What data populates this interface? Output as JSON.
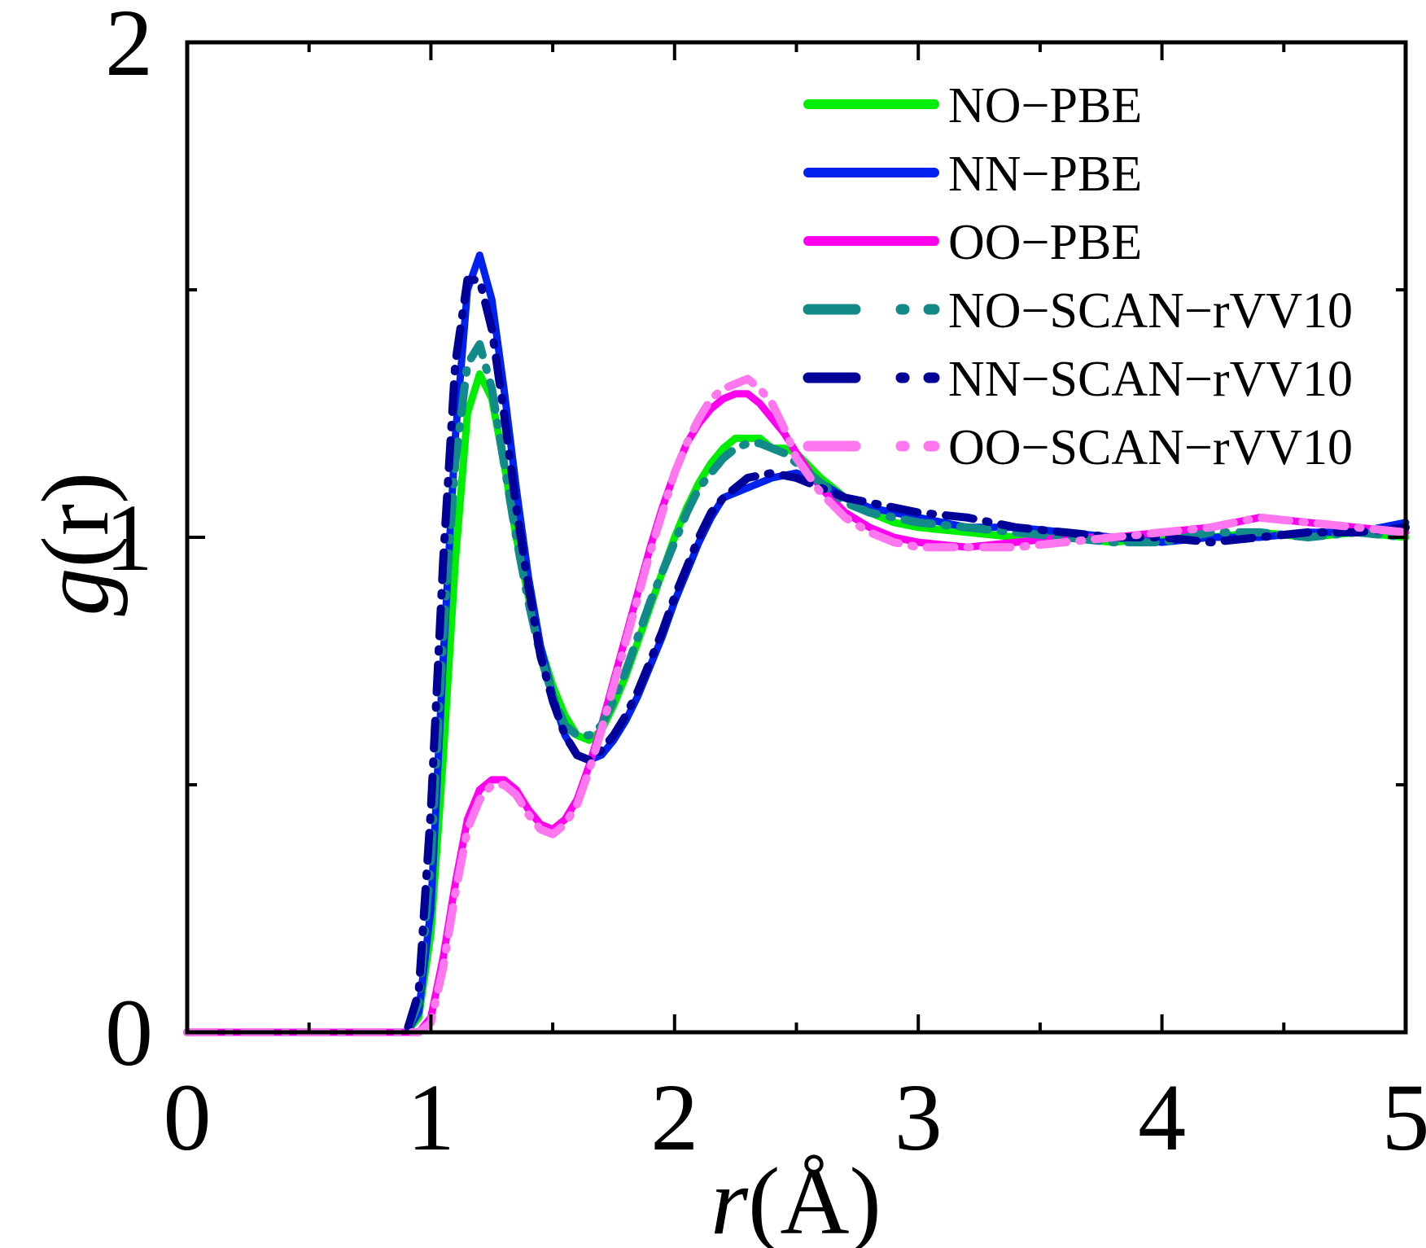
{
  "chart_data": {
    "type": "line",
    "title": "",
    "xlabel_italic": "r",
    "xlabel_rest": "(Å)",
    "ylabel_italic": "g",
    "ylabel_rest": "(r)",
    "xlim": [
      0,
      5
    ],
    "ylim": [
      0,
      2
    ],
    "xticks": [
      0,
      1,
      2,
      3,
      4,
      5
    ],
    "xtick_labels": [
      "0",
      "1",
      "2",
      "3",
      "4",
      "5"
    ],
    "yticks": [
      0,
      1,
      2
    ],
    "ytick_labels": [
      "0",
      "1",
      "2"
    ],
    "grid": false,
    "legend_position": "top-right",
    "series": [
      {
        "name": "NO−PBE",
        "color": "#00ee00",
        "style": "solid",
        "x": [
          0,
          0.9,
          0.95,
          1.0,
          1.05,
          1.1,
          1.15,
          1.2,
          1.25,
          1.3,
          1.35,
          1.4,
          1.45,
          1.5,
          1.55,
          1.6,
          1.65,
          1.7,
          1.75,
          1.8,
          1.85,
          1.9,
          1.95,
          2.0,
          2.05,
          2.1,
          2.15,
          2.2,
          2.25,
          2.3,
          2.35,
          2.4,
          2.45,
          2.5,
          2.6,
          2.7,
          2.8,
          2.9,
          3.0,
          3.2,
          3.4,
          3.6,
          3.8,
          4.0,
          4.2,
          4.4,
          4.6,
          4.8,
          5.0
        ],
        "y": [
          0,
          0,
          0.03,
          0.2,
          0.55,
          0.95,
          1.25,
          1.33,
          1.28,
          1.15,
          1.0,
          0.88,
          0.78,
          0.7,
          0.64,
          0.6,
          0.59,
          0.61,
          0.66,
          0.72,
          0.79,
          0.86,
          0.93,
          1.0,
          1.06,
          1.11,
          1.15,
          1.18,
          1.2,
          1.2,
          1.2,
          1.18,
          1.18,
          1.17,
          1.12,
          1.08,
          1.05,
          1.03,
          1.02,
          1.01,
          1.0,
          1.0,
          0.99,
          1.0,
          1.0,
          1.01,
          1.0,
          1.01,
          1.0
        ]
      },
      {
        "name": "NN−PBE",
        "color": "#0022ee",
        "style": "solid",
        "x": [
          0,
          0.9,
          0.95,
          1.0,
          1.05,
          1.1,
          1.15,
          1.2,
          1.25,
          1.3,
          1.35,
          1.4,
          1.45,
          1.5,
          1.55,
          1.6,
          1.65,
          1.7,
          1.75,
          1.8,
          1.85,
          1.9,
          1.95,
          2.0,
          2.05,
          2.1,
          2.15,
          2.2,
          2.3,
          2.4,
          2.5,
          2.6,
          2.7,
          2.8,
          2.9,
          3.0,
          3.2,
          3.4,
          3.6,
          3.8,
          4.0,
          4.2,
          4.4,
          4.6,
          4.8,
          5.0
        ],
        "y": [
          0,
          0,
          0.04,
          0.25,
          0.75,
          1.2,
          1.5,
          1.57,
          1.48,
          1.3,
          1.1,
          0.92,
          0.78,
          0.68,
          0.6,
          0.56,
          0.55,
          0.56,
          0.59,
          0.63,
          0.68,
          0.74,
          0.8,
          0.87,
          0.93,
          0.99,
          1.04,
          1.08,
          1.1,
          1.12,
          1.13,
          1.11,
          1.08,
          1.06,
          1.05,
          1.04,
          1.02,
          1.02,
          1.01,
          1.0,
          0.99,
          1.0,
          1.0,
          1.01,
          1.01,
          1.03
        ]
      },
      {
        "name": "OO−PBE",
        "color": "#ff00ee",
        "style": "solid",
        "x": [
          0,
          0.95,
          1.0,
          1.05,
          1.1,
          1.15,
          1.2,
          1.25,
          1.3,
          1.35,
          1.4,
          1.45,
          1.5,
          1.55,
          1.6,
          1.65,
          1.7,
          1.75,
          1.8,
          1.85,
          1.9,
          1.95,
          2.0,
          2.05,
          2.1,
          2.15,
          2.2,
          2.25,
          2.3,
          2.35,
          2.4,
          2.45,
          2.5,
          2.6,
          2.7,
          2.8,
          2.9,
          3.0,
          3.2,
          3.4,
          3.6,
          3.8,
          4.0,
          4.2,
          4.4,
          4.6,
          4.8,
          5.0
        ],
        "y": [
          0,
          0,
          0.03,
          0.15,
          0.3,
          0.43,
          0.49,
          0.51,
          0.51,
          0.49,
          0.45,
          0.42,
          0.41,
          0.43,
          0.47,
          0.54,
          0.62,
          0.71,
          0.8,
          0.89,
          0.98,
          1.06,
          1.13,
          1.19,
          1.23,
          1.26,
          1.28,
          1.29,
          1.29,
          1.27,
          1.24,
          1.21,
          1.17,
          1.1,
          1.05,
          1.02,
          1.0,
          0.99,
          0.98,
          0.99,
          1.0,
          1.0,
          1.01,
          1.02,
          1.04,
          1.03,
          1.02,
          1.01
        ]
      },
      {
        "name": "NO−SCAN−rVV10",
        "color": "#138a8a",
        "style": "dashdot",
        "x": [
          0,
          0.9,
          0.95,
          1.0,
          1.05,
          1.1,
          1.15,
          1.2,
          1.25,
          1.3,
          1.35,
          1.4,
          1.45,
          1.5,
          1.55,
          1.6,
          1.65,
          1.7,
          1.75,
          1.8,
          1.85,
          1.9,
          1.95,
          2.0,
          2.05,
          2.1,
          2.15,
          2.2,
          2.25,
          2.3,
          2.35,
          2.4,
          2.45,
          2.5,
          2.6,
          2.7,
          2.8,
          2.9,
          3.0,
          3.2,
          3.4,
          3.6,
          3.8,
          4.0,
          4.2,
          4.4,
          4.6,
          4.8,
          5.0
        ],
        "y": [
          0,
          0,
          0.06,
          0.35,
          0.8,
          1.15,
          1.35,
          1.39,
          1.3,
          1.15,
          1.0,
          0.87,
          0.76,
          0.68,
          0.62,
          0.6,
          0.6,
          0.62,
          0.67,
          0.73,
          0.8,
          0.87,
          0.93,
          0.99,
          1.05,
          1.1,
          1.13,
          1.16,
          1.18,
          1.19,
          1.19,
          1.18,
          1.17,
          1.15,
          1.11,
          1.07,
          1.05,
          1.04,
          1.03,
          1.02,
          1.01,
          1.0,
          0.99,
          0.99,
          1.01,
          1.01,
          1.0,
          1.01,
          1.0
        ]
      },
      {
        "name": "NN−SCAN−rVV10",
        "color": "#000099",
        "style": "dashdot",
        "x": [
          0,
          0.9,
          0.95,
          1.0,
          1.05,
          1.1,
          1.15,
          1.2,
          1.25,
          1.3,
          1.35,
          1.4,
          1.45,
          1.5,
          1.55,
          1.6,
          1.65,
          1.7,
          1.75,
          1.8,
          1.85,
          1.9,
          1.95,
          2.0,
          2.05,
          2.1,
          2.15,
          2.2,
          2.3,
          2.4,
          2.5,
          2.6,
          2.7,
          2.8,
          2.9,
          3.0,
          3.2,
          3.4,
          3.6,
          3.8,
          4.0,
          4.2,
          4.4,
          4.6,
          4.8,
          5.0
        ],
        "y": [
          0,
          0,
          0.08,
          0.45,
          0.95,
          1.35,
          1.52,
          1.52,
          1.42,
          1.25,
          1.06,
          0.9,
          0.76,
          0.67,
          0.6,
          0.56,
          0.55,
          0.57,
          0.6,
          0.64,
          0.69,
          0.75,
          0.81,
          0.88,
          0.94,
          1.0,
          1.05,
          1.08,
          1.12,
          1.13,
          1.12,
          1.1,
          1.08,
          1.07,
          1.06,
          1.05,
          1.04,
          1.02,
          1.01,
          1.0,
          1.0,
          0.99,
          1.0,
          1.01,
          1.01,
          1.02
        ]
      },
      {
        "name": "OO−SCAN−rVV10",
        "color": "#ff77ee",
        "style": "dashdot",
        "x": [
          0,
          0.95,
          1.0,
          1.05,
          1.1,
          1.15,
          1.2,
          1.25,
          1.3,
          1.35,
          1.4,
          1.45,
          1.5,
          1.55,
          1.6,
          1.65,
          1.7,
          1.75,
          1.8,
          1.85,
          1.9,
          1.95,
          2.0,
          2.05,
          2.1,
          2.15,
          2.2,
          2.25,
          2.3,
          2.35,
          2.4,
          2.45,
          2.5,
          2.6,
          2.7,
          2.8,
          2.9,
          3.0,
          3.2,
          3.4,
          3.6,
          3.8,
          4.0,
          4.2,
          4.4,
          4.6,
          4.8,
          5.0
        ],
        "y": [
          0,
          0,
          0.02,
          0.13,
          0.28,
          0.41,
          0.47,
          0.5,
          0.5,
          0.48,
          0.44,
          0.41,
          0.4,
          0.42,
          0.46,
          0.53,
          0.61,
          0.7,
          0.79,
          0.88,
          0.97,
          1.05,
          1.13,
          1.19,
          1.24,
          1.28,
          1.3,
          1.31,
          1.32,
          1.3,
          1.27,
          1.22,
          1.16,
          1.09,
          1.04,
          1.01,
          0.99,
          0.98,
          0.98,
          0.98,
          0.99,
          1.0,
          1.01,
          1.02,
          1.04,
          1.03,
          1.02,
          1.01
        ]
      }
    ]
  }
}
